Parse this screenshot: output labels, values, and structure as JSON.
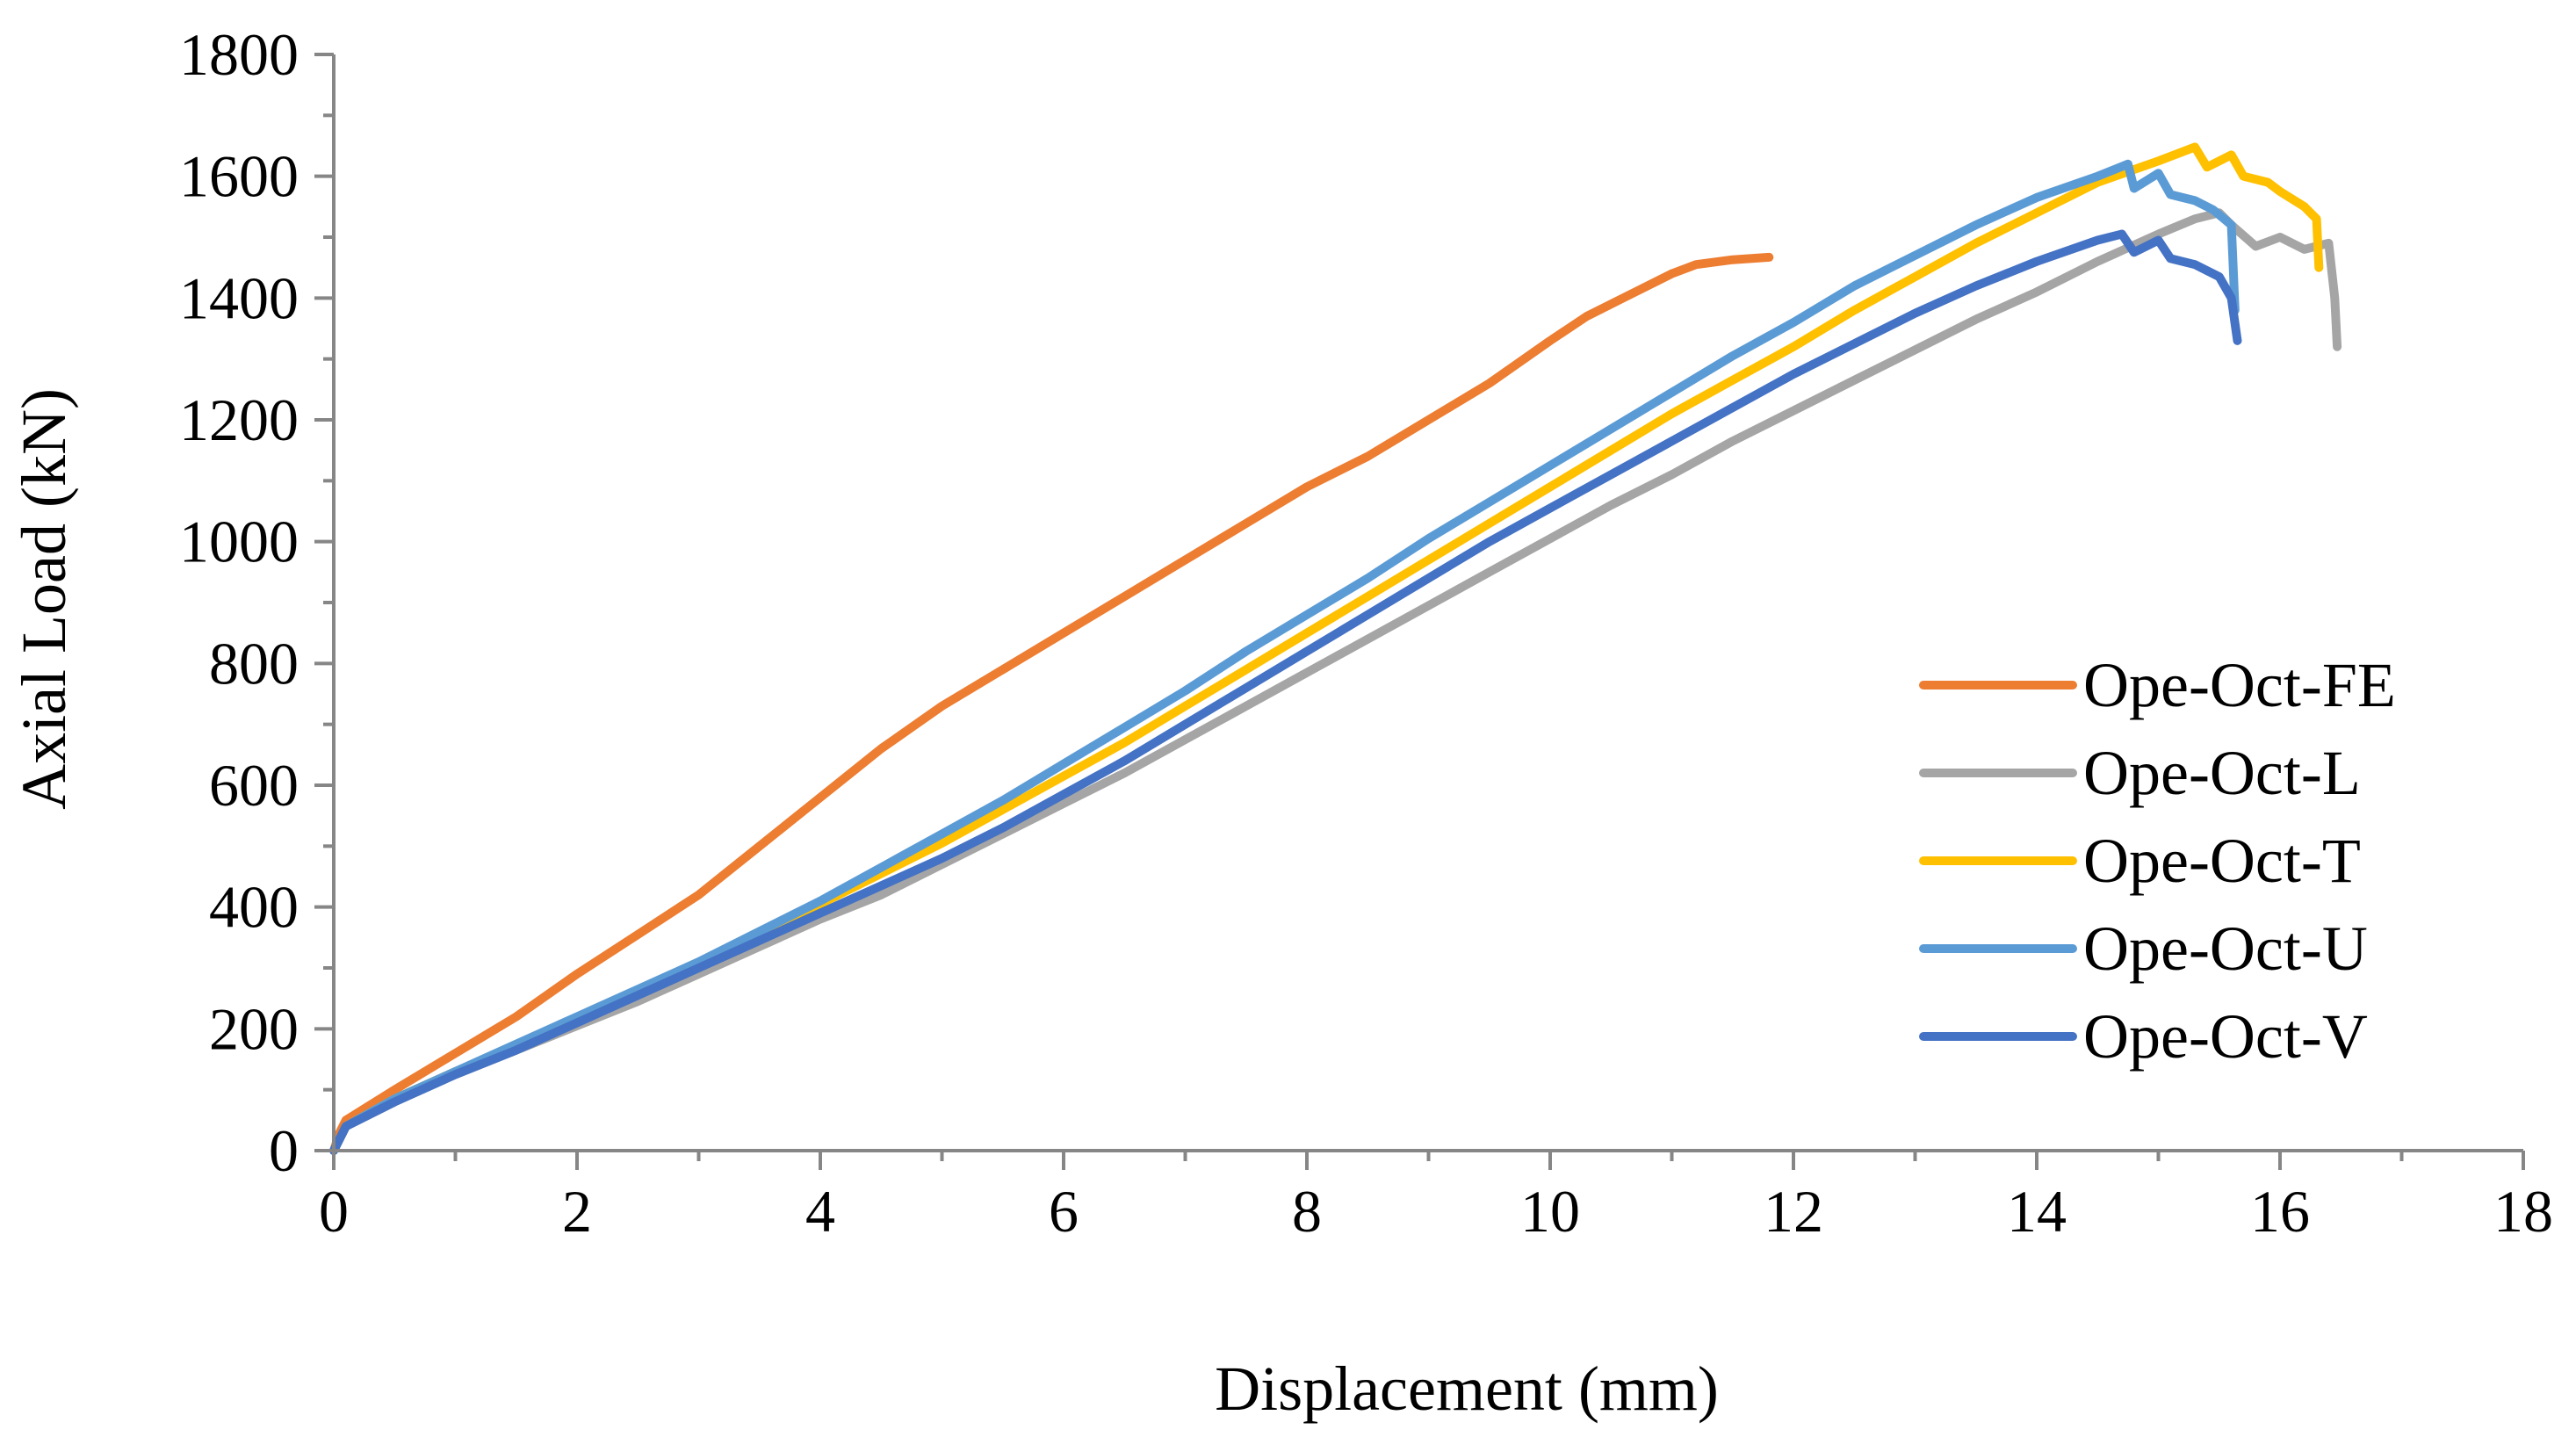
{
  "chart_data": {
    "type": "line",
    "title": "",
    "xlabel": "Displacement (mm)",
    "ylabel": "Axial Load (kN)",
    "xlim": [
      0,
      18
    ],
    "ylim": [
      0,
      1800
    ],
    "x_ticks": [
      0,
      2,
      4,
      6,
      8,
      10,
      12,
      14,
      16,
      18
    ],
    "y_ticks": [
      0,
      200,
      400,
      600,
      800,
      1000,
      1200,
      1400,
      1600,
      1800
    ],
    "x_tick_labels": [
      "0",
      "2",
      "4",
      "6",
      "8",
      "10",
      "12",
      "14",
      "16",
      "18"
    ],
    "y_tick_labels": [
      "0",
      "200",
      "400",
      "600",
      "800",
      "1000",
      "1200",
      "1400",
      "1600",
      "1800"
    ],
    "grid": false,
    "legend_position": "right",
    "series": [
      {
        "name": "Ope-Oct-FE",
        "color": "#ED7D31",
        "points": [
          [
            0,
            0
          ],
          [
            0.05,
            30
          ],
          [
            0.1,
            50
          ],
          [
            0.5,
            100
          ],
          [
            1,
            160
          ],
          [
            1.5,
            220
          ],
          [
            2,
            290
          ],
          [
            2.5,
            355
          ],
          [
            3,
            420
          ],
          [
            3.5,
            500
          ],
          [
            4,
            580
          ],
          [
            4.5,
            660
          ],
          [
            5,
            730
          ],
          [
            5.5,
            790
          ],
          [
            6,
            850
          ],
          [
            6.5,
            910
          ],
          [
            7,
            970
          ],
          [
            7.5,
            1030
          ],
          [
            8,
            1090
          ],
          [
            8.5,
            1140
          ],
          [
            9,
            1200
          ],
          [
            9.5,
            1260
          ],
          [
            10,
            1330
          ],
          [
            10.3,
            1370
          ],
          [
            10.6,
            1400
          ],
          [
            11,
            1440
          ],
          [
            11.2,
            1455
          ],
          [
            11.5,
            1463
          ],
          [
            11.8,
            1467
          ]
        ]
      },
      {
        "name": "Ope-Oct-L",
        "color": "#A5A5A5",
        "points": [
          [
            0,
            0
          ],
          [
            0.1,
            40
          ],
          [
            0.5,
            80
          ],
          [
            1,
            125
          ],
          [
            1.5,
            165
          ],
          [
            2,
            205
          ],
          [
            2.5,
            245
          ],
          [
            3,
            290
          ],
          [
            3.5,
            335
          ],
          [
            4,
            380
          ],
          [
            4.5,
            420
          ],
          [
            5,
            470
          ],
          [
            5.5,
            520
          ],
          [
            6,
            570
          ],
          [
            6.5,
            620
          ],
          [
            7,
            675
          ],
          [
            7.5,
            730
          ],
          [
            8,
            785
          ],
          [
            8.5,
            840
          ],
          [
            9,
            895
          ],
          [
            9.5,
            950
          ],
          [
            10,
            1005
          ],
          [
            10.5,
            1060
          ],
          [
            11,
            1110
          ],
          [
            11.5,
            1165
          ],
          [
            12,
            1215
          ],
          [
            12.5,
            1265
          ],
          [
            13,
            1315
          ],
          [
            13.5,
            1365
          ],
          [
            14,
            1410
          ],
          [
            14.5,
            1460
          ],
          [
            15,
            1505
          ],
          [
            15.3,
            1530
          ],
          [
            15.5,
            1540
          ],
          [
            15.6,
            1520
          ],
          [
            15.8,
            1485
          ],
          [
            16,
            1500
          ],
          [
            16.2,
            1480
          ],
          [
            16.4,
            1490
          ],
          [
            16.45,
            1400
          ],
          [
            16.47,
            1320
          ]
        ]
      },
      {
        "name": "Ope-Oct-T",
        "color": "#FFC000",
        "points": [
          [
            0,
            0
          ],
          [
            0.1,
            40
          ],
          [
            0.5,
            85
          ],
          [
            1,
            130
          ],
          [
            1.5,
            170
          ],
          [
            2,
            215
          ],
          [
            2.5,
            260
          ],
          [
            3,
            305
          ],
          [
            3.5,
            355
          ],
          [
            4,
            405
          ],
          [
            4.5,
            455
          ],
          [
            5,
            505
          ],
          [
            5.5,
            560
          ],
          [
            6,
            615
          ],
          [
            6.5,
            670
          ],
          [
            7,
            730
          ],
          [
            7.5,
            790
          ],
          [
            8,
            850
          ],
          [
            8.5,
            910
          ],
          [
            9,
            970
          ],
          [
            9.5,
            1030
          ],
          [
            10,
            1090
          ],
          [
            10.5,
            1150
          ],
          [
            11,
            1210
          ],
          [
            11.5,
            1265
          ],
          [
            12,
            1320
          ],
          [
            12.5,
            1380
          ],
          [
            13,
            1435
          ],
          [
            13.5,
            1490
          ],
          [
            14,
            1540
          ],
          [
            14.5,
            1590
          ],
          [
            15,
            1625
          ],
          [
            15.3,
            1648
          ],
          [
            15.4,
            1615
          ],
          [
            15.6,
            1635
          ],
          [
            15.7,
            1600
          ],
          [
            15.9,
            1590
          ],
          [
            16,
            1575
          ],
          [
            16.2,
            1550
          ],
          [
            16.3,
            1530
          ],
          [
            16.32,
            1450
          ]
        ]
      },
      {
        "name": "Ope-Oct-U",
        "color": "#5B9BD5",
        "points": [
          [
            0,
            0
          ],
          [
            0.1,
            40
          ],
          [
            0.5,
            85
          ],
          [
            1,
            130
          ],
          [
            1.5,
            175
          ],
          [
            2,
            220
          ],
          [
            2.5,
            265
          ],
          [
            3,
            310
          ],
          [
            3.5,
            360
          ],
          [
            4,
            410
          ],
          [
            4.5,
            465
          ],
          [
            5,
            520
          ],
          [
            5.5,
            575
          ],
          [
            6,
            635
          ],
          [
            6.5,
            695
          ],
          [
            7,
            755
          ],
          [
            7.5,
            820
          ],
          [
            8,
            880
          ],
          [
            8.5,
            940
          ],
          [
            9,
            1005
          ],
          [
            9.5,
            1065
          ],
          [
            10,
            1125
          ],
          [
            10.5,
            1185
          ],
          [
            11,
            1245
          ],
          [
            11.5,
            1305
          ],
          [
            12,
            1360
          ],
          [
            12.5,
            1420
          ],
          [
            13,
            1470
          ],
          [
            13.5,
            1520
          ],
          [
            14,
            1565
          ],
          [
            14.5,
            1600
          ],
          [
            14.75,
            1620
          ],
          [
            14.8,
            1580
          ],
          [
            15,
            1605
          ],
          [
            15.1,
            1570
          ],
          [
            15.3,
            1560
          ],
          [
            15.45,
            1545
          ],
          [
            15.6,
            1520
          ],
          [
            15.63,
            1380
          ]
        ]
      },
      {
        "name": "Ope-Oct-V",
        "color": "#4472C4",
        "points": [
          [
            0,
            0
          ],
          [
            0.1,
            40
          ],
          [
            0.5,
            80
          ],
          [
            1,
            125
          ],
          [
            1.5,
            165
          ],
          [
            2,
            210
          ],
          [
            2.5,
            255
          ],
          [
            3,
            300
          ],
          [
            3.5,
            345
          ],
          [
            4,
            390
          ],
          [
            4.5,
            435
          ],
          [
            5,
            480
          ],
          [
            5.5,
            530
          ],
          [
            6,
            585
          ],
          [
            6.5,
            640
          ],
          [
            7,
            700
          ],
          [
            7.5,
            760
          ],
          [
            8,
            820
          ],
          [
            8.5,
            880
          ],
          [
            9,
            940
          ],
          [
            9.5,
            1000
          ],
          [
            10,
            1055
          ],
          [
            10.5,
            1110
          ],
          [
            11,
            1165
          ],
          [
            11.5,
            1220
          ],
          [
            12,
            1275
          ],
          [
            12.5,
            1325
          ],
          [
            13,
            1375
          ],
          [
            13.5,
            1420
          ],
          [
            14,
            1460
          ],
          [
            14.5,
            1495
          ],
          [
            14.7,
            1505
          ],
          [
            14.8,
            1475
          ],
          [
            15,
            1495
          ],
          [
            15.1,
            1465
          ],
          [
            15.3,
            1455
          ],
          [
            15.5,
            1435
          ],
          [
            15.6,
            1400
          ],
          [
            15.65,
            1330
          ]
        ]
      }
    ]
  }
}
